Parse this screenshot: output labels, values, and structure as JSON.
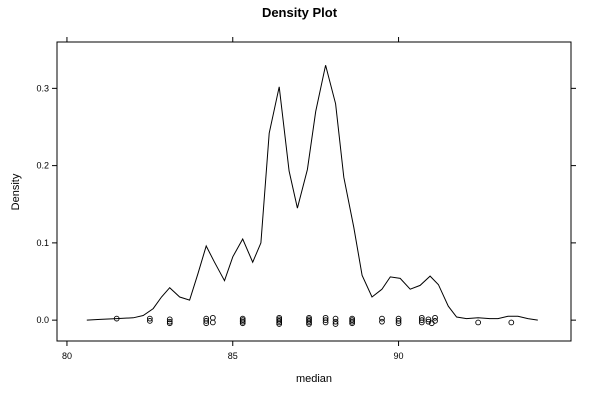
{
  "chart_data": {
    "type": "line",
    "title": "Density Plot",
    "xlabel": "median",
    "ylabel": "Density",
    "xlim": [
      79.7,
      95.2
    ],
    "ylim": [
      -0.027,
      0.36
    ],
    "x_ticks": [
      80,
      85,
      90
    ],
    "y_ticks": [
      0.0,
      0.1,
      0.2,
      0.3
    ],
    "x_tick_labels": [
      "80",
      "85",
      "90"
    ],
    "y_tick_labels": [
      "0.0",
      "0.1",
      "0.2",
      "0.3"
    ],
    "grid": false,
    "legend": "none",
    "series": [
      {
        "points": [
          [
            80.6,
            0.0
          ],
          [
            81.0,
            0.001
          ],
          [
            81.5,
            0.002
          ],
          [
            82.0,
            0.003
          ],
          [
            82.3,
            0.006
          ],
          [
            82.6,
            0.015
          ],
          [
            82.85,
            0.03
          ],
          [
            83.1,
            0.042
          ],
          [
            83.4,
            0.03
          ],
          [
            83.7,
            0.026
          ],
          [
            83.95,
            0.06
          ],
          [
            84.2,
            0.096
          ],
          [
            84.45,
            0.075
          ],
          [
            84.75,
            0.051
          ],
          [
            85.0,
            0.082
          ],
          [
            85.3,
            0.105
          ],
          [
            85.6,
            0.075
          ],
          [
            85.85,
            0.1
          ],
          [
            86.1,
            0.242
          ],
          [
            86.4,
            0.302
          ],
          [
            86.7,
            0.193
          ],
          [
            86.95,
            0.145
          ],
          [
            87.25,
            0.195
          ],
          [
            87.5,
            0.27
          ],
          [
            87.8,
            0.33
          ],
          [
            88.1,
            0.28
          ],
          [
            88.35,
            0.185
          ],
          [
            88.65,
            0.12
          ],
          [
            88.9,
            0.058
          ],
          [
            89.2,
            0.03
          ],
          [
            89.5,
            0.04
          ],
          [
            89.75,
            0.056
          ],
          [
            90.05,
            0.054
          ],
          [
            90.35,
            0.04
          ],
          [
            90.65,
            0.045
          ],
          [
            90.95,
            0.057
          ],
          [
            91.2,
            0.046
          ],
          [
            91.5,
            0.018
          ],
          [
            91.75,
            0.004
          ],
          [
            92.05,
            0.002
          ],
          [
            92.4,
            0.003
          ],
          [
            92.75,
            0.002
          ],
          [
            93.0,
            0.002
          ],
          [
            93.3,
            0.005
          ],
          [
            93.6,
            0.005
          ],
          [
            93.9,
            0.002
          ],
          [
            94.2,
            0.0
          ]
        ]
      }
    ],
    "rug": [
      [
        81.5,
        0.002
      ],
      [
        82.5,
        0.002
      ],
      [
        82.5,
        -0.001
      ],
      [
        83.1,
        0.001
      ],
      [
        83.1,
        -0.002
      ],
      [
        83.1,
        -0.004
      ],
      [
        84.2,
        0.002
      ],
      [
        84.2,
        -0.001
      ],
      [
        84.2,
        -0.004
      ],
      [
        84.4,
        0.003
      ],
      [
        84.4,
        -0.003
      ],
      [
        85.3,
        0.002
      ],
      [
        85.3,
        0.0
      ],
      [
        85.3,
        -0.002
      ],
      [
        85.3,
        -0.004
      ],
      [
        86.4,
        0.003
      ],
      [
        86.4,
        0.001
      ],
      [
        86.4,
        -0.001
      ],
      [
        86.4,
        -0.003
      ],
      [
        86.4,
        -0.005
      ],
      [
        87.3,
        0.003
      ],
      [
        87.3,
        0.001
      ],
      [
        87.3,
        -0.001
      ],
      [
        87.3,
        -0.003
      ],
      [
        87.3,
        -0.005
      ],
      [
        87.8,
        0.003
      ],
      [
        87.8,
        0.0
      ],
      [
        87.8,
        -0.003
      ],
      [
        88.1,
        0.002
      ],
      [
        88.1,
        -0.002
      ],
      [
        88.1,
        -0.005
      ],
      [
        88.6,
        0.002
      ],
      [
        88.6,
        0.0
      ],
      [
        88.6,
        -0.002
      ],
      [
        88.6,
        -0.004
      ],
      [
        89.5,
        0.002
      ],
      [
        89.5,
        -0.002
      ],
      [
        90.0,
        0.002
      ],
      [
        90.0,
        -0.001
      ],
      [
        90.0,
        -0.004
      ],
      [
        90.7,
        0.003
      ],
      [
        90.7,
        0.0
      ],
      [
        90.7,
        -0.003
      ],
      [
        90.9,
        0.001
      ],
      [
        90.9,
        -0.002
      ],
      [
        91.0,
        -0.004
      ],
      [
        91.1,
        0.003
      ],
      [
        91.1,
        -0.001
      ],
      [
        92.4,
        -0.003
      ],
      [
        93.4,
        -0.003
      ]
    ]
  }
}
